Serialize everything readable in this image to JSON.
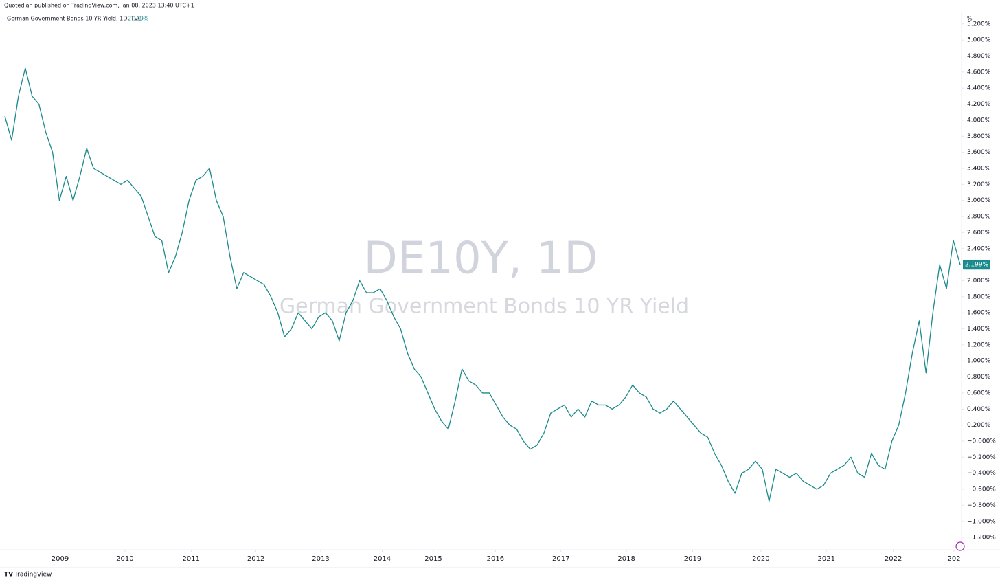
{
  "header": {
    "published": "Quotedian published on TradingView.com, Jan 08, 2023 13:40 UTC+1",
    "brand": "TradingView"
  },
  "chart_data": {
    "type": "line",
    "title": "DE10Y, 1D",
    "subtitle": "German Government Bonds 10 YR Yield",
    "legend": "German Government Bonds 10 YR Yield, 1D, TVC",
    "y_unit": "%",
    "grid": false,
    "series": [
      {
        "name": "DE10Y",
        "color": "#1a8a8c",
        "values": [
          4.05,
          3.75,
          4.3,
          4.65,
          4.3,
          4.2,
          3.85,
          3.6,
          3.0,
          3.3,
          3.0,
          3.3,
          3.65,
          3.4,
          3.35,
          3.3,
          3.25,
          3.2,
          3.25,
          3.15,
          3.05,
          2.8,
          2.55,
          2.5,
          2.1,
          2.3,
          2.6,
          3.0,
          3.25,
          3.3,
          3.4,
          3.0,
          2.8,
          2.3,
          1.9,
          2.1,
          2.05,
          2.0,
          1.95,
          1.8,
          1.6,
          1.3,
          1.4,
          1.6,
          1.5,
          1.4,
          1.55,
          1.6,
          1.5,
          1.25,
          1.6,
          1.75,
          2.0,
          1.85,
          1.85,
          1.9,
          1.75,
          1.55,
          1.4,
          1.1,
          0.9,
          0.8,
          0.6,
          0.4,
          0.25,
          0.15,
          0.5,
          0.9,
          0.75,
          0.7,
          0.6,
          0.6,
          0.45,
          0.3,
          0.2,
          0.15,
          0.0,
          -0.1,
          -0.05,
          0.1,
          0.35,
          0.4,
          0.45,
          0.3,
          0.4,
          0.3,
          0.5,
          0.45,
          0.45,
          0.4,
          0.45,
          0.55,
          0.7,
          0.6,
          0.55,
          0.4,
          0.35,
          0.4,
          0.5,
          0.4,
          0.3,
          0.2,
          0.1,
          0.05,
          -0.15,
          -0.3,
          -0.5,
          -0.65,
          -0.4,
          -0.35,
          -0.25,
          -0.35,
          -0.75,
          -0.35,
          -0.4,
          -0.45,
          -0.4,
          -0.5,
          -0.55,
          -0.6,
          -0.55,
          -0.4,
          -0.35,
          -0.3,
          -0.2,
          -0.4,
          -0.45,
          -0.15,
          -0.3,
          -0.35,
          0.0,
          0.2,
          0.6,
          1.1,
          1.5,
          0.85,
          1.6,
          2.2,
          1.9,
          2.5,
          2.199
        ],
        "value_labels": [
          null,
          null,
          null,
          null,
          null,
          null,
          null,
          null,
          null,
          null,
          null,
          null,
          null,
          null,
          null,
          null,
          null,
          null,
          null,
          null,
          null,
          null,
          null,
          null,
          null,
          null,
          null,
          null,
          null,
          null,
          null,
          null,
          null,
          null,
          null,
          null,
          null,
          null,
          null,
          null,
          null,
          null,
          null,
          null,
          null,
          null,
          null,
          null,
          null,
          null,
          null,
          null,
          null,
          null,
          null,
          null,
          null,
          null,
          null,
          null,
          null,
          null,
          null,
          null,
          null,
          null,
          null,
          null,
          null,
          null,
          null,
          null,
          null,
          null,
          null,
          null,
          null,
          null,
          null,
          null,
          null,
          null,
          null,
          null,
          null,
          null,
          null,
          null,
          null,
          null,
          null,
          null,
          null,
          null,
          null,
          null,
          null,
          null,
          null,
          null,
          null,
          null,
          null,
          null,
          null,
          null,
          null,
          null,
          null,
          null,
          null,
          null,
          null,
          null,
          null,
          null,
          null,
          null,
          null,
          null,
          null,
          null,
          null,
          null,
          null,
          null,
          null,
          null,
          null,
          null,
          null,
          null,
          null,
          null,
          null,
          null,
          null,
          null,
          null,
          null,
          "2.199%"
        ]
      }
    ],
    "xlim": [
      0,
      140
    ],
    "xticks": [
      {
        "value": 8.1,
        "label": "2009"
      },
      {
        "value": 17.6,
        "label": "2010"
      },
      {
        "value": 27.3,
        "label": "2011"
      },
      {
        "value": 36.8,
        "label": "2012"
      },
      {
        "value": 46.3,
        "label": "2013"
      },
      {
        "value": 55.3,
        "label": "2014"
      },
      {
        "value": 62.8,
        "label": "2015"
      },
      {
        "value": 71.9,
        "label": "2016"
      },
      {
        "value": 81.5,
        "label": "2017"
      },
      {
        "value": 91.1,
        "label": "2018"
      },
      {
        "value": 100.8,
        "label": "2019"
      },
      {
        "value": 110.8,
        "label": "2020"
      },
      {
        "value": 120.4,
        "label": "2021"
      },
      {
        "value": 130.2,
        "label": "2022"
      },
      {
        "value": 139.1,
        "label": "202"
      }
    ],
    "ylim": [
      -1.353,
      5.241
    ],
    "yticks": [
      {
        "value": 5.2,
        "label": "5.200%"
      },
      {
        "value": 5.0,
        "label": "5.000%"
      },
      {
        "value": 4.8,
        "label": "4.800%"
      },
      {
        "value": 4.6,
        "label": "4.600%"
      },
      {
        "value": 4.4,
        "label": "4.400%"
      },
      {
        "value": 4.2,
        "label": "4.200%"
      },
      {
        "value": 4.0,
        "label": "4.000%"
      },
      {
        "value": 3.8,
        "label": "3.800%"
      },
      {
        "value": 3.6,
        "label": "3.600%"
      },
      {
        "value": 3.4,
        "label": "3.400%"
      },
      {
        "value": 3.2,
        "label": "3.200%"
      },
      {
        "value": 3.0,
        "label": "3.000%"
      },
      {
        "value": 2.8,
        "label": "2.800%"
      },
      {
        "value": 2.6,
        "label": "2.600%"
      },
      {
        "value": 2.4,
        "label": "2.400%"
      },
      {
        "value": 2.2,
        "label": "2.200%"
      },
      {
        "value": 2.0,
        "label": "2.000%"
      },
      {
        "value": 1.8,
        "label": "1.800%"
      },
      {
        "value": 1.6,
        "label": "1.600%"
      },
      {
        "value": 1.4,
        "label": "1.400%"
      },
      {
        "value": 1.2,
        "label": "1.200%"
      },
      {
        "value": 1.0,
        "label": "1.000%"
      },
      {
        "value": 0.8,
        "label": "0.800%"
      },
      {
        "value": 0.6,
        "label": "0.600%"
      },
      {
        "value": 0.4,
        "label": "0.400%"
      },
      {
        "value": 0.2,
        "label": "0.200%"
      },
      {
        "value": 0,
        "label": "−0.000%"
      },
      {
        "value": -0.2,
        "label": "−0.200%"
      },
      {
        "value": -0.4,
        "label": "−0.400%"
      },
      {
        "value": -0.6,
        "label": "−0.600%"
      },
      {
        "value": -0.8,
        "label": "−0.800%"
      },
      {
        "value": -1.0,
        "label": "−1.000%"
      },
      {
        "value": -1.2,
        "label": "−1.200%"
      }
    ]
  }
}
